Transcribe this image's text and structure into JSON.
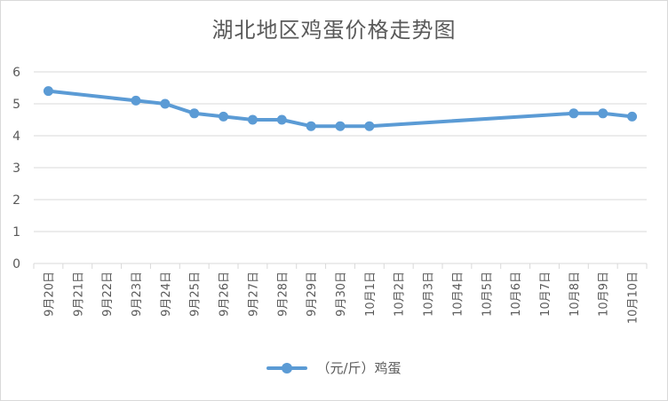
{
  "chart_data": {
    "type": "line",
    "title": "湖北地区鸡蛋价格走势图",
    "categories": [
      "9月20日",
      "9月21日",
      "9月22日",
      "9月23日",
      "9月24日",
      "9月25日",
      "9月26日",
      "9月27日",
      "9月28日",
      "9月29日",
      "9月30日",
      "10月1日",
      "10月2日",
      "10月3日",
      "10月4日",
      "10月5日",
      "10月6日",
      "10月7日",
      "10月8日",
      "10月9日",
      "10月10日"
    ],
    "series": [
      {
        "name": "（元/斤）鸡蛋",
        "color": "#5b9bd5",
        "points": [
          {
            "x": "9月20日",
            "y": 5.4
          },
          {
            "x": "9月23日",
            "y": 5.1
          },
          {
            "x": "9月24日",
            "y": 5.0
          },
          {
            "x": "9月25日",
            "y": 4.7
          },
          {
            "x": "9月26日",
            "y": 4.6
          },
          {
            "x": "9月27日",
            "y": 4.5
          },
          {
            "x": "9月28日",
            "y": 4.5
          },
          {
            "x": "9月29日",
            "y": 4.3
          },
          {
            "x": "9月30日",
            "y": 4.3
          },
          {
            "x": "10月1日",
            "y": 4.3
          },
          {
            "x": "10月8日",
            "y": 4.7
          },
          {
            "x": "10月9日",
            "y": 4.7
          },
          {
            "x": "10月10日",
            "y": 4.6
          }
        ]
      }
    ],
    "ylim": [
      0,
      6
    ],
    "yticks": [
      "0",
      "1",
      "2",
      "3",
      "4",
      "5",
      "6"
    ],
    "grid": true,
    "legend_position": "bottom"
  }
}
